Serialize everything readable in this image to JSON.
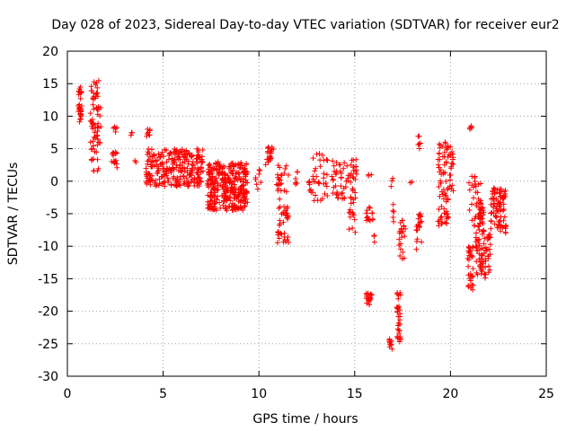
{
  "chart_data": {
    "type": "scatter",
    "title": "Day 028 of 2023, Sidereal Day-to-day VTEC variation (SDTVAR) for receiver eur2",
    "xlabel": "GPS time / hours",
    "ylabel": "SDTVAR / TECUs",
    "xlim": [
      0,
      25
    ],
    "ylim": [
      -30,
      20
    ],
    "xticks": [
      0,
      5,
      10,
      15,
      20,
      25
    ],
    "yticks": [
      20,
      15,
      10,
      5,
      0,
      -5,
      -10,
      -15,
      -20,
      -25,
      -30
    ],
    "grid": true,
    "marker": "+",
    "color": "#ff0000",
    "clusters": [
      {
        "x": [
          0.55,
          0.75
        ],
        "y": [
          9,
          14.5
        ],
        "n": 30
      },
      {
        "x": [
          1.2,
          1.75
        ],
        "y": [
          1.5,
          15.5
        ],
        "n": 70
      },
      {
        "x": [
          2.3,
          2.6
        ],
        "y": [
          2,
          4.5
        ],
        "n": 16
      },
      {
        "x": [
          2.4,
          2.6
        ],
        "y": [
          7.5,
          8.5
        ],
        "n": 5
      },
      {
        "x": [
          3.3,
          3.4
        ],
        "y": [
          7,
          7.5
        ],
        "n": 3
      },
      {
        "x": [
          3.5,
          3.6
        ],
        "y": [
          2.8,
          3.2
        ],
        "n": 2
      },
      {
        "x": [
          4.1,
          4.35
        ],
        "y": [
          6.8,
          8.2
        ],
        "n": 8
      },
      {
        "x": [
          4.1,
          7.1
        ],
        "y": [
          -0.8,
          5
        ],
        "n": 260
      },
      {
        "x": [
          7.3,
          9.4
        ],
        "y": [
          -4.5,
          3
        ],
        "n": 320
      },
      {
        "x": [
          9.8,
          10.1
        ],
        "y": [
          -1.5,
          2.5
        ],
        "n": 8
      },
      {
        "x": [
          10.35,
          10.75
        ],
        "y": [
          2.5,
          5.5
        ],
        "n": 22
      },
      {
        "x": [
          10.9,
          11.55
        ],
        "y": [
          -9.5,
          2.5
        ],
        "n": 60
      },
      {
        "x": [
          11.85,
          12.05
        ],
        "y": [
          -0.5,
          1.5
        ],
        "n": 6
      },
      {
        "x": [
          12.6,
          12.85
        ],
        "y": [
          -2,
          0.5
        ],
        "n": 10
      },
      {
        "x": [
          12.8,
          13.6
        ],
        "y": [
          -3,
          4.5
        ],
        "n": 30
      },
      {
        "x": [
          13.8,
          14.7
        ],
        "y": [
          -2.8,
          3.2
        ],
        "n": 40
      },
      {
        "x": [
          14.7,
          15.1
        ],
        "y": [
          -8.5,
          4
        ],
        "n": 40
      },
      {
        "x": [
          15.6,
          15.9
        ],
        "y": [
          -19,
          -17
        ],
        "n": 20
      },
      {
        "x": [
          15.6,
          15.95
        ],
        "y": [
          -6.5,
          -4
        ],
        "n": 14
      },
      {
        "x": [
          15.7,
          15.9
        ],
        "y": [
          0.5,
          1.2
        ],
        "n": 3
      },
      {
        "x": [
          16.0,
          16.1
        ],
        "y": [
          -11,
          -8
        ],
        "n": 3
      },
      {
        "x": [
          16.8,
          16.95
        ],
        "y": [
          -26,
          -24
        ],
        "n": 10
      },
      {
        "x": [
          16.9,
          17.0
        ],
        "y": [
          -1,
          0.5
        ],
        "n": 3
      },
      {
        "x": [
          16.95,
          17.05
        ],
        "y": [
          -8,
          -3
        ],
        "n": 5
      },
      {
        "x": [
          17.2,
          17.4
        ],
        "y": [
          -25,
          -16
        ],
        "n": 35
      },
      {
        "x": [
          17.3,
          17.65
        ],
        "y": [
          -12,
          -6
        ],
        "n": 22
      },
      {
        "x": [
          17.9,
          18.1
        ],
        "y": [
          -0.5,
          0.1
        ],
        "n": 2
      },
      {
        "x": [
          18.2,
          18.5
        ],
        "y": [
          -10.5,
          -5
        ],
        "n": 22
      },
      {
        "x": [
          18.3,
          18.45
        ],
        "y": [
          5,
          7
        ],
        "n": 6
      },
      {
        "x": [
          19.35,
          19.9
        ],
        "y": [
          -7,
          6
        ],
        "n": 70
      },
      {
        "x": [
          19.9,
          20.15
        ],
        "y": [
          -1.5,
          5.5
        ],
        "n": 20
      },
      {
        "x": [
          20.9,
          21.2
        ],
        "y": [
          -17,
          -10
        ],
        "n": 30
      },
      {
        "x": [
          21.0,
          21.15
        ],
        "y": [
          7.5,
          8.5
        ],
        "n": 5
      },
      {
        "x": [
          20.95,
          21.6
        ],
        "y": [
          -8,
          1
        ],
        "n": 45
      },
      {
        "x": [
          21.3,
          22.1
        ],
        "y": [
          -15,
          -8
        ],
        "n": 70
      },
      {
        "x": [
          21.45,
          21.75
        ],
        "y": [
          -8,
          -3
        ],
        "n": 15
      },
      {
        "x": [
          22.1,
          22.9
        ],
        "y": [
          -8,
          -1
        ],
        "n": 85
      }
    ]
  }
}
